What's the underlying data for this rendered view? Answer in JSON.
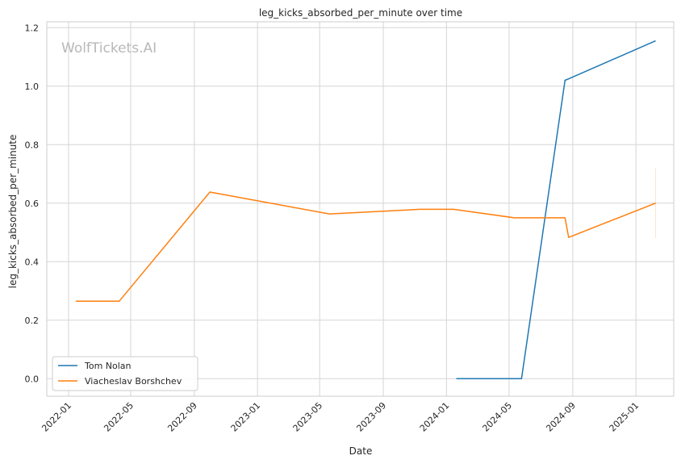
{
  "chart_data": {
    "type": "line",
    "title": "leg_kicks_absorbed_per_minute over time",
    "xlabel": "Date",
    "ylabel": "leg_kicks_absorbed_per_minute",
    "watermark": "WolfTickets.AI",
    "grid": true,
    "legend_position": "lower-left",
    "xlim": [
      "2021-11-20",
      "2025-03-15"
    ],
    "ylim": [
      -0.06,
      1.22
    ],
    "x_ticks": [
      "2022-01",
      "2022-05",
      "2022-09",
      "2023-01",
      "2023-05",
      "2023-09",
      "2024-01",
      "2024-05",
      "2024-09",
      "2025-01"
    ],
    "y_ticks": [
      "0.0",
      "0.2",
      "0.4",
      "0.6",
      "0.8",
      "1.0",
      "1.2"
    ],
    "series": [
      {
        "name": "Tom Nolan",
        "color": "#1f77b4",
        "points": [
          {
            "x": "2024-01-20",
            "y": 0.0
          },
          {
            "x": "2024-05-25",
            "y": 0.0
          },
          {
            "x": "2024-08-17",
            "y": 1.02
          },
          {
            "x": "2024-08-24",
            "y": 1.025
          },
          {
            "x": "2025-02-08",
            "y": 1.155
          }
        ]
      },
      {
        "name": "Viacheslav Borshchev",
        "color": "#ff7f0e",
        "points": [
          {
            "x": "2022-01-15",
            "y": 0.265
          },
          {
            "x": "2022-04-09",
            "y": 0.265
          },
          {
            "x": "2022-10-01",
            "y": 0.638
          },
          {
            "x": "2023-05-20",
            "y": 0.563
          },
          {
            "x": "2023-11-11",
            "y": 0.579
          },
          {
            "x": "2024-01-15",
            "y": 0.579
          },
          {
            "x": "2024-05-11",
            "y": 0.55
          },
          {
            "x": "2024-08-17",
            "y": 0.55
          },
          {
            "x": "2024-08-24",
            "y": 0.483
          },
          {
            "x": "2025-02-08",
            "y": 0.6
          }
        ],
        "error_band": {
          "x": "2025-02-08",
          "low": 0.48,
          "high": 0.72
        }
      }
    ]
  }
}
